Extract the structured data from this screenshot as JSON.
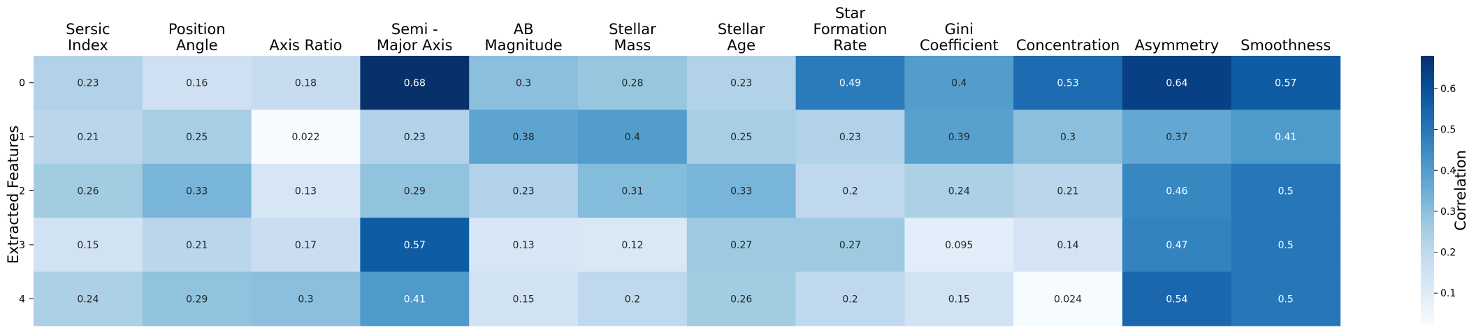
{
  "chart_data": {
    "type": "heatmap",
    "ylabel": "Extracted Features",
    "colorbar_label": "Correlation",
    "colormap": "Blues",
    "columns": [
      [
        "Sersic",
        "Index"
      ],
      [
        "Position",
        "Angle"
      ],
      [
        "Axis Ratio"
      ],
      [
        "Semi -",
        "Major Axis"
      ],
      [
        "AB",
        "Magnitude"
      ],
      [
        "Stellar",
        "Mass"
      ],
      [
        "Stellar",
        "Age"
      ],
      [
        "Star",
        "Formation",
        "Rate"
      ],
      [
        "Gini",
        "Coefficient"
      ],
      [
        "Concentration"
      ],
      [
        "Asymmetry"
      ],
      [
        "Smoothness"
      ]
    ],
    "rows": [
      "0",
      "1",
      "2",
      "3",
      "4"
    ],
    "values": [
      [
        0.23,
        0.16,
        0.18,
        0.68,
        0.3,
        0.28,
        0.23,
        0.49,
        0.4,
        0.53,
        0.64,
        0.57
      ],
      [
        0.21,
        0.25,
        0.022,
        0.23,
        0.38,
        0.4,
        0.25,
        0.23,
        0.39,
        0.3,
        0.37,
        0.41
      ],
      [
        0.26,
        0.33,
        0.13,
        0.29,
        0.23,
        0.31,
        0.33,
        0.2,
        0.24,
        0.21,
        0.46,
        0.5
      ],
      [
        0.15,
        0.21,
        0.17,
        0.57,
        0.13,
        0.12,
        0.27,
        0.27,
        0.095,
        0.14,
        0.47,
        0.5
      ],
      [
        0.24,
        0.29,
        0.3,
        0.41,
        0.15,
        0.2,
        0.26,
        0.2,
        0.15,
        0.024,
        0.54,
        0.5
      ]
    ],
    "vmin": 0.022,
    "vmax": 0.68,
    "colorbar_ticks": [
      "0.1",
      "0.2",
      "0.3",
      "0.4",
      "0.5",
      "0.6"
    ],
    "colorbar_tick_values": [
      0.1,
      0.2,
      0.3,
      0.4,
      0.5,
      0.6
    ],
    "annotate": true
  }
}
